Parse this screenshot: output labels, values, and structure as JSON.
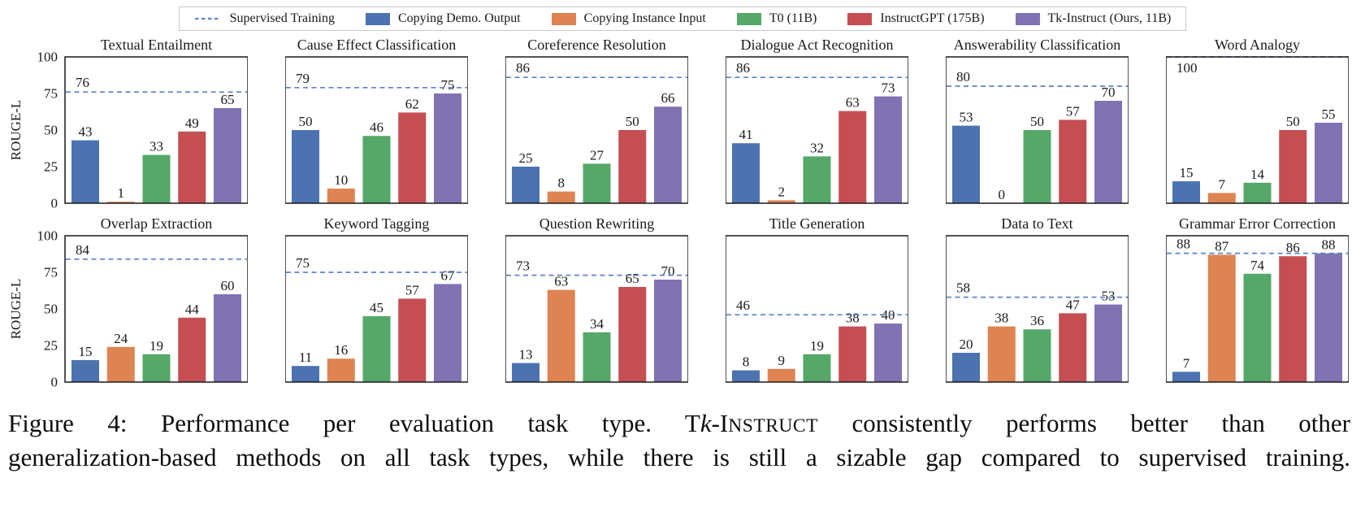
{
  "legend": {
    "items": [
      {
        "label": "Supervised Training",
        "swatch": "dashed-line",
        "color": "#5b84c4"
      },
      {
        "label": "Copying Demo. Output",
        "swatch": "rect",
        "color": "#4C72B0"
      },
      {
        "label": "Copying Instance Input",
        "swatch": "rect",
        "color": "#DD8452"
      },
      {
        "label": "T0 (11B)",
        "swatch": "rect",
        "color": "#55A868"
      },
      {
        "label": "InstructGPT (175B)",
        "swatch": "rect",
        "color": "#C44E52"
      },
      {
        "label": "Tk-Instruct (Ours, 11B)",
        "swatch": "rect",
        "color": "#8172B3"
      }
    ]
  },
  "chart_data": {
    "type": "bar",
    "ylabel": "ROUGE-L",
    "ylim": [
      0,
      100
    ],
    "yticks": [
      0,
      25,
      50,
      75,
      100
    ],
    "grid": false,
    "legend_position": "top",
    "series_names": [
      "Copying Demo. Output",
      "Copying Instance Input",
      "T0 (11B)",
      "InstructGPT (175B)",
      "Tk-Instruct (Ours, 11B)"
    ],
    "series_colors": [
      "#4C72B0",
      "#DD8452",
      "#55A868",
      "#C44E52",
      "#8172B3"
    ],
    "supervised_line": {
      "label": "Supervised Training",
      "color": "#5b84c4",
      "style": "dashed"
    },
    "panels": [
      {
        "title": "Textual Entailment",
        "supervised": 76,
        "values": [
          43,
          1,
          33,
          49,
          65
        ]
      },
      {
        "title": "Cause Effect Classification",
        "supervised": 79,
        "values": [
          50,
          10,
          46,
          62,
          75
        ]
      },
      {
        "title": "Coreference Resolution",
        "supervised": 86,
        "values": [
          25,
          8,
          27,
          50,
          66
        ]
      },
      {
        "title": "Dialogue Act Recognition",
        "supervised": 86,
        "values": [
          41,
          2,
          32,
          63,
          73
        ]
      },
      {
        "title": "Answerability Classification",
        "supervised": 80,
        "values": [
          53,
          0,
          50,
          57,
          70
        ]
      },
      {
        "title": "Word Analogy",
        "supervised": 100,
        "values": [
          15,
          7,
          14,
          50,
          55
        ]
      },
      {
        "title": "Overlap Extraction",
        "supervised": 84,
        "values": [
          15,
          24,
          19,
          44,
          60
        ]
      },
      {
        "title": "Keyword Tagging",
        "supervised": 75,
        "values": [
          11,
          16,
          45,
          57,
          67
        ]
      },
      {
        "title": "Question Rewriting",
        "supervised": 73,
        "values": [
          13,
          63,
          34,
          65,
          70
        ]
      },
      {
        "title": "Title Generation",
        "supervised": 46,
        "values": [
          8,
          9,
          19,
          38,
          40
        ]
      },
      {
        "title": "Data to Text",
        "supervised": 58,
        "values": [
          20,
          38,
          36,
          47,
          53
        ]
      },
      {
        "title": "Grammar Error Correction",
        "supervised": 88,
        "values": [
          7,
          87,
          74,
          86,
          88
        ]
      }
    ]
  },
  "caption": {
    "line1_seg1": "Figure 4: Performance per evaluation task type. T",
    "line1_k": "k",
    "line1_seg2": "-I",
    "line1_smallcaps": "NSTRUCT",
    "line1_seg3": " consistently performs better than other",
    "line2": "generalization-based methods on all task types, while there is still a sizable gap compared to supervised training."
  }
}
